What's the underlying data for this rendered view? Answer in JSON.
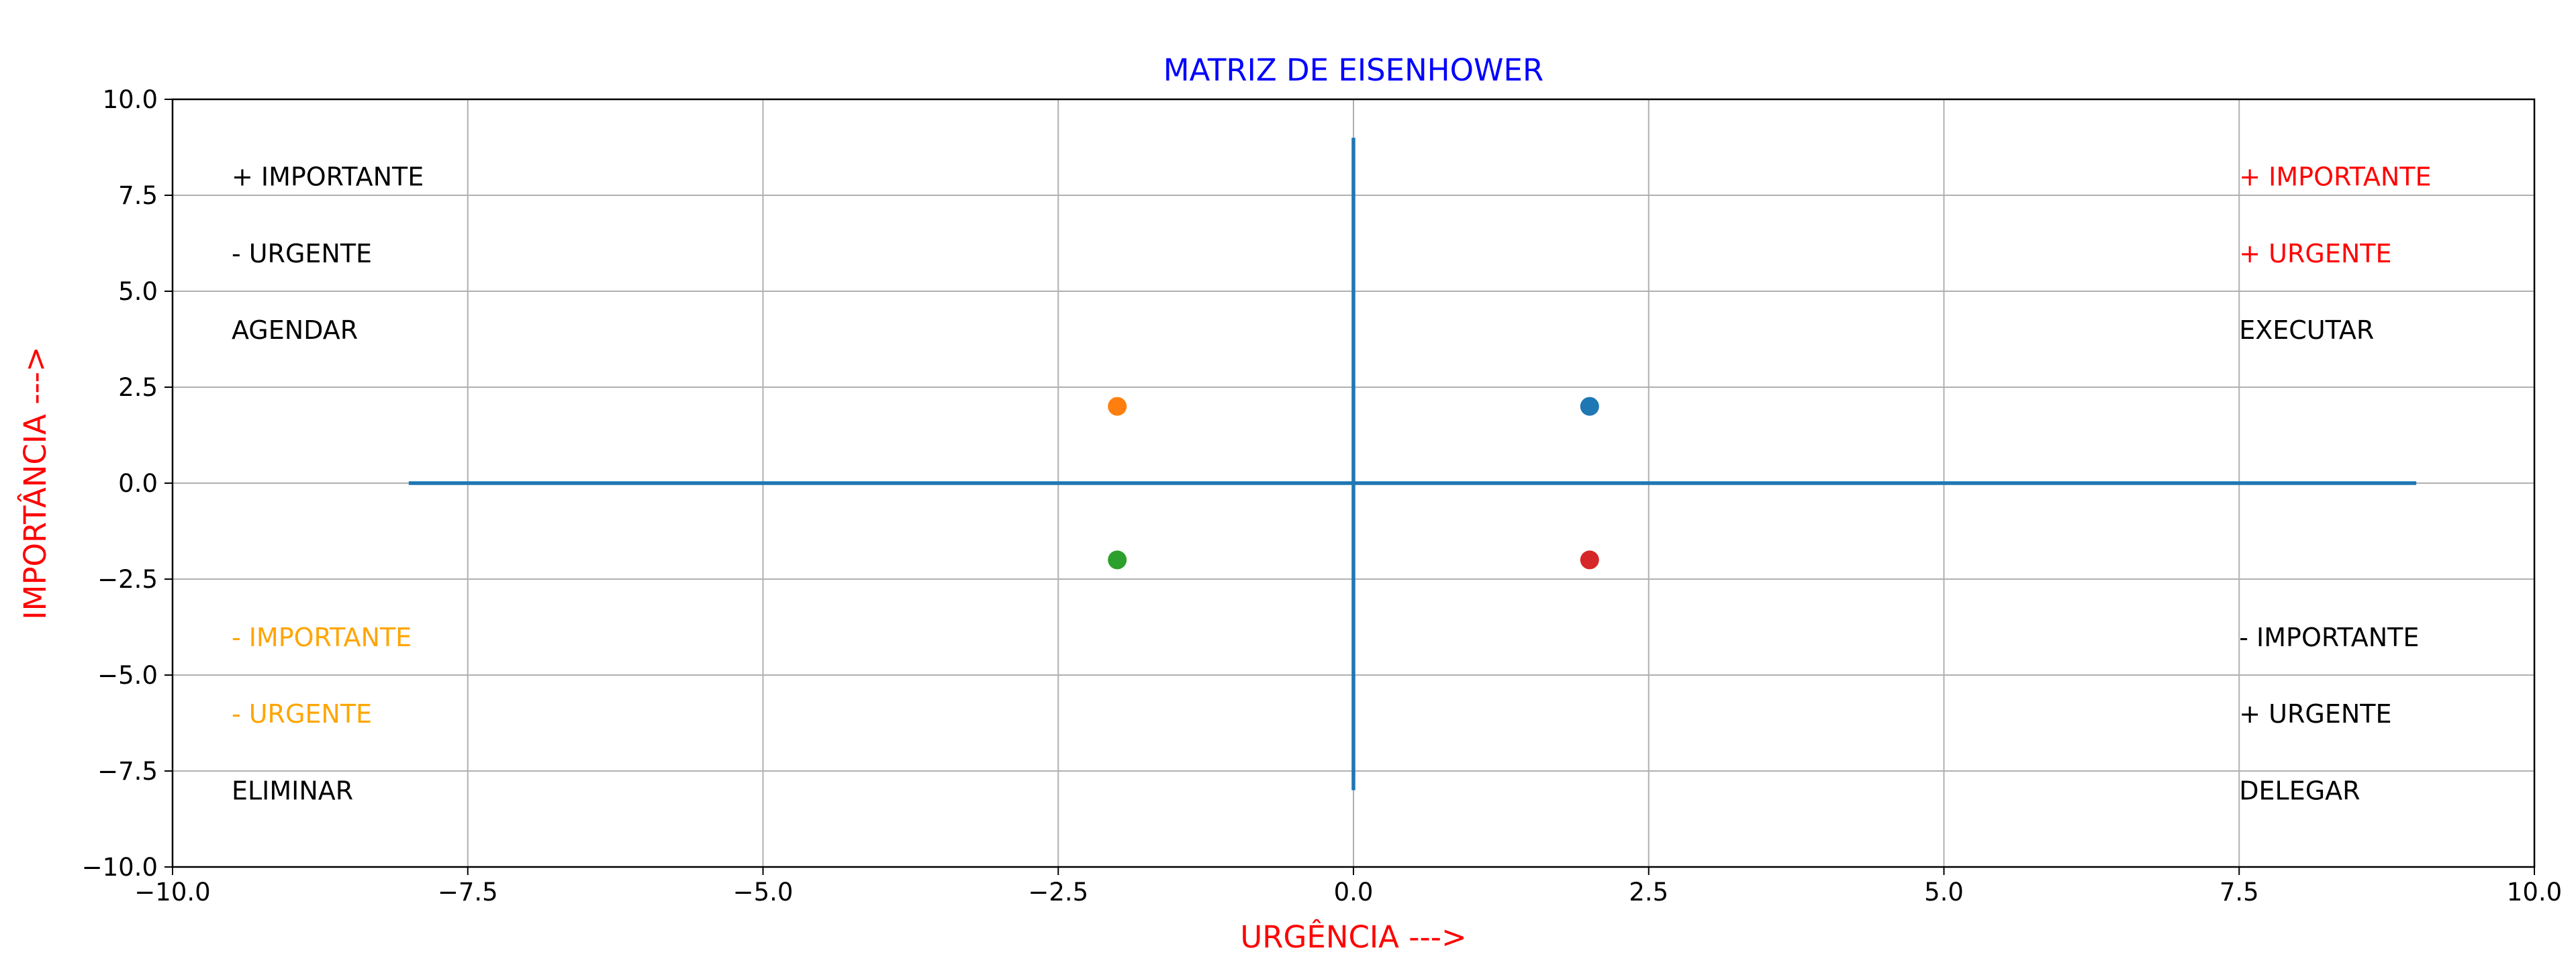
{
  "chart_data": {
    "type": "scatter",
    "title": "MATRIZ DE EISENHOWER",
    "title_color": "#0000ff",
    "xlabel": "URGÊNCIA --->",
    "ylabel": "IMPORTÂNCIA --->",
    "axis_label_color": "#ff0000",
    "xlim": [
      -10,
      10
    ],
    "ylim": [
      -10,
      10
    ],
    "x_ticks": [
      -10,
      -7.5,
      -5,
      -2.5,
      0,
      2.5,
      5,
      7.5,
      10
    ],
    "y_ticks": [
      -10,
      -7.5,
      -5,
      -2.5,
      0,
      2.5,
      5,
      7.5,
      10
    ],
    "x_tick_labels": [
      "−10.0",
      "−7.5",
      "−5.0",
      "−2.5",
      "0.0",
      "2.5",
      "5.0",
      "7.5",
      "10.0"
    ],
    "y_tick_labels": [
      "−10.0",
      "−7.5",
      "−5.0",
      "−2.5",
      "0.0",
      "2.5",
      "5.0",
      "7.5",
      "10.0"
    ],
    "grid": true,
    "lines": [
      {
        "x": [
          -8,
          9
        ],
        "y": [
          0,
          0
        ],
        "color": "#1f77b4"
      },
      {
        "x": [
          0,
          0
        ],
        "y": [
          -8,
          9
        ],
        "color": "#1f77b4"
      }
    ],
    "points": [
      {
        "x": 2,
        "y": 2,
        "color": "#1f77b4"
      },
      {
        "x": -2,
        "y": 2,
        "color": "#ff7f0e"
      },
      {
        "x": -2,
        "y": -2,
        "color": "#2ca02c"
      },
      {
        "x": 2,
        "y": -2,
        "color": "#d62728"
      }
    ],
    "annotations": [
      {
        "text": "+ IMPORTANTE",
        "x": -9.5,
        "y": 8,
        "color": "#000000"
      },
      {
        "text": "- URGENTE",
        "x": -9.5,
        "y": 6,
        "color": "#000000"
      },
      {
        "text": "AGENDAR",
        "x": -9.5,
        "y": 4,
        "color": "#000000"
      },
      {
        "text": "+ IMPORTANTE",
        "x": 7.5,
        "y": 8,
        "color": "#ff0000"
      },
      {
        "text": "+ URGENTE",
        "x": 7.5,
        "y": 6,
        "color": "#ff0000"
      },
      {
        "text": "EXECUTAR",
        "x": 7.5,
        "y": 4,
        "color": "#000000"
      },
      {
        "text": "- IMPORTANTE",
        "x": -9.5,
        "y": -4,
        "color": "#ffa500"
      },
      {
        "text": "- URGENTE",
        "x": -9.5,
        "y": -6,
        "color": "#ffa500"
      },
      {
        "text": "ELIMINAR",
        "x": -9.5,
        "y": -8,
        "color": "#000000"
      },
      {
        "text": "- IMPORTANTE",
        "x": 7.5,
        "y": -4,
        "color": "#000000"
      },
      {
        "text": "+ URGENTE",
        "x": 7.5,
        "y": -6,
        "color": "#000000"
      },
      {
        "text": "DELEGAR",
        "x": 7.5,
        "y": -8,
        "color": "#000000"
      }
    ]
  }
}
